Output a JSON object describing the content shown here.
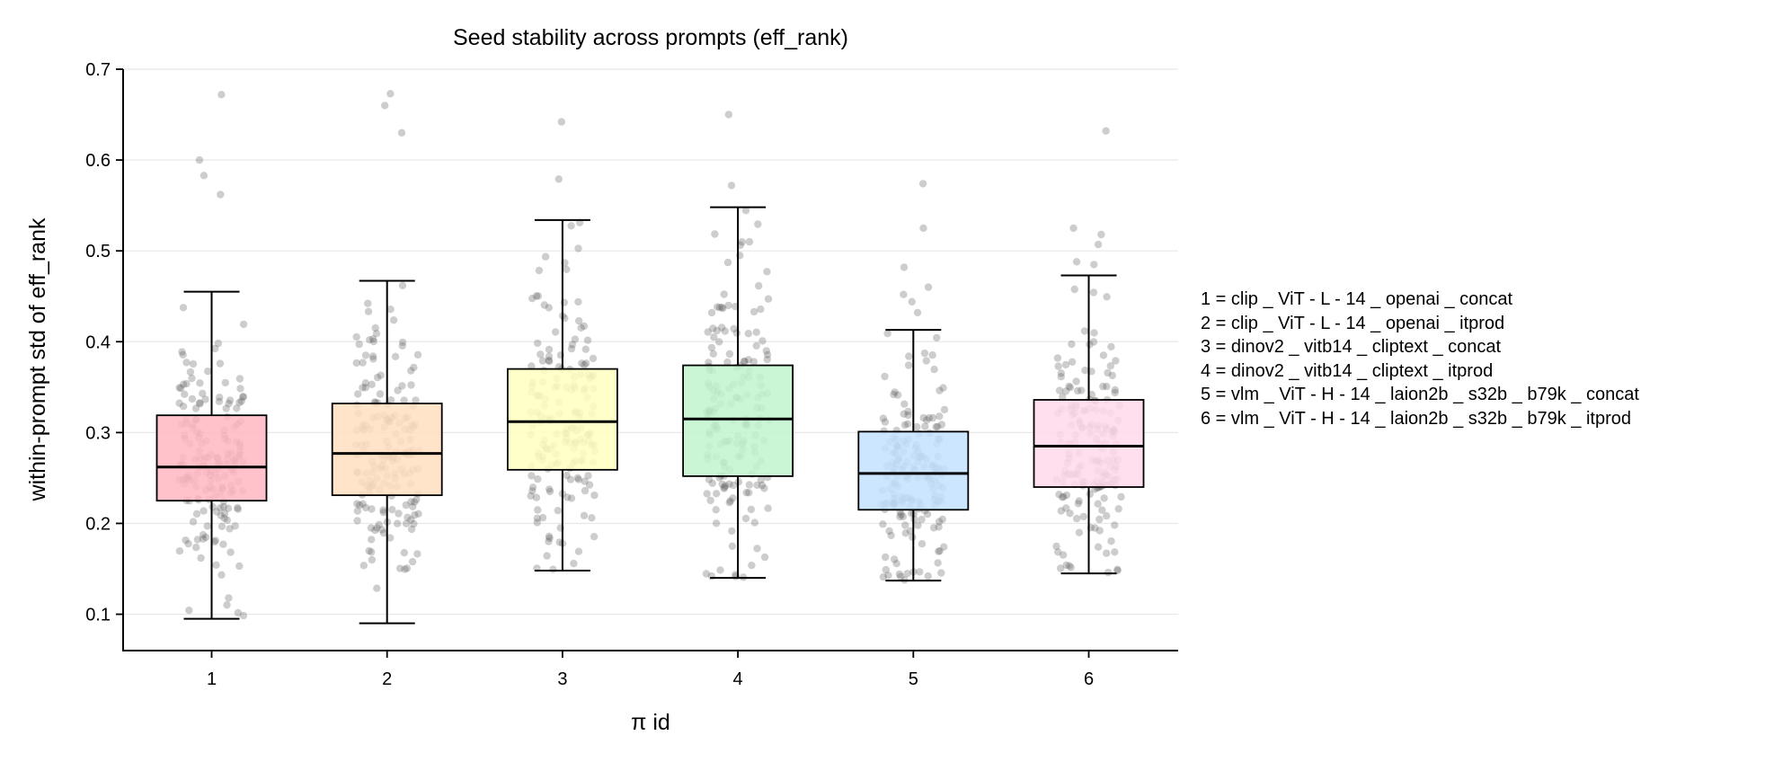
{
  "chart_data": {
    "type": "box",
    "title": "Seed stability across prompts (eff_rank)",
    "xlabel": "π id",
    "ylabel": "within-prompt std of eff_rank",
    "ylim": [
      0.06,
      0.7
    ],
    "yticks": [
      "0.1",
      "0.2",
      "0.3",
      "0.4",
      "0.5",
      "0.6",
      "0.7"
    ],
    "grid": "horizontal",
    "legend_position": "right",
    "categories": [
      "1",
      "2",
      "3",
      "4",
      "5",
      "6"
    ],
    "boxes": [
      {
        "id": "1",
        "color": "#ffb6c1",
        "whisker_low": 0.095,
        "q1": 0.225,
        "median": 0.262,
        "q3": 0.319,
        "whisker_high": 0.455,
        "outliers": [
          0.583,
          0.6,
          0.672,
          0.562
        ]
      },
      {
        "id": "2",
        "color": "#ffdfc0",
        "whisker_low": 0.09,
        "q1": 0.231,
        "median": 0.277,
        "q3": 0.332,
        "whisker_high": 0.467,
        "outliers": [
          0.63,
          0.66,
          0.673
        ]
      },
      {
        "id": "3",
        "color": "#ffffbf",
        "whisker_low": 0.148,
        "q1": 0.259,
        "median": 0.312,
        "q3": 0.37,
        "whisker_high": 0.534,
        "outliers": [
          0.579,
          0.642
        ]
      },
      {
        "id": "4",
        "color": "#c2f5cf",
        "whisker_low": 0.14,
        "q1": 0.252,
        "median": 0.315,
        "q3": 0.374,
        "whisker_high": 0.548,
        "outliers": [
          0.572,
          0.65
        ]
      },
      {
        "id": "5",
        "color": "#c4e2ff",
        "whisker_low": 0.137,
        "q1": 0.215,
        "median": 0.255,
        "q3": 0.301,
        "whisker_high": 0.413,
        "outliers": [
          0.432,
          0.444,
          0.452,
          0.46,
          0.482,
          0.525,
          0.574
        ]
      },
      {
        "id": "6",
        "color": "#ffd9ea",
        "whisker_low": 0.145,
        "q1": 0.24,
        "median": 0.285,
        "q3": 0.336,
        "whisker_high": 0.473,
        "outliers": [
          0.485,
          0.488,
          0.507,
          0.518,
          0.525,
          0.632
        ]
      }
    ],
    "legend": [
      "1 = clip _ ViT - L - 14 _ openai _ concat",
      "2 = clip _ ViT - L - 14 _ openai _ itprod",
      "3 = dinov2 _ vitb14 _ cliptext _ concat",
      "4 = dinov2 _ vitb14 _ cliptext _ itprod",
      "5 = vlm _ ViT - H - 14 _ laion2b _ s32b _ b79k _ concat",
      "6 = vlm _ ViT - H - 14 _ laion2b _ s32b _ b79k _ itprod"
    ]
  }
}
